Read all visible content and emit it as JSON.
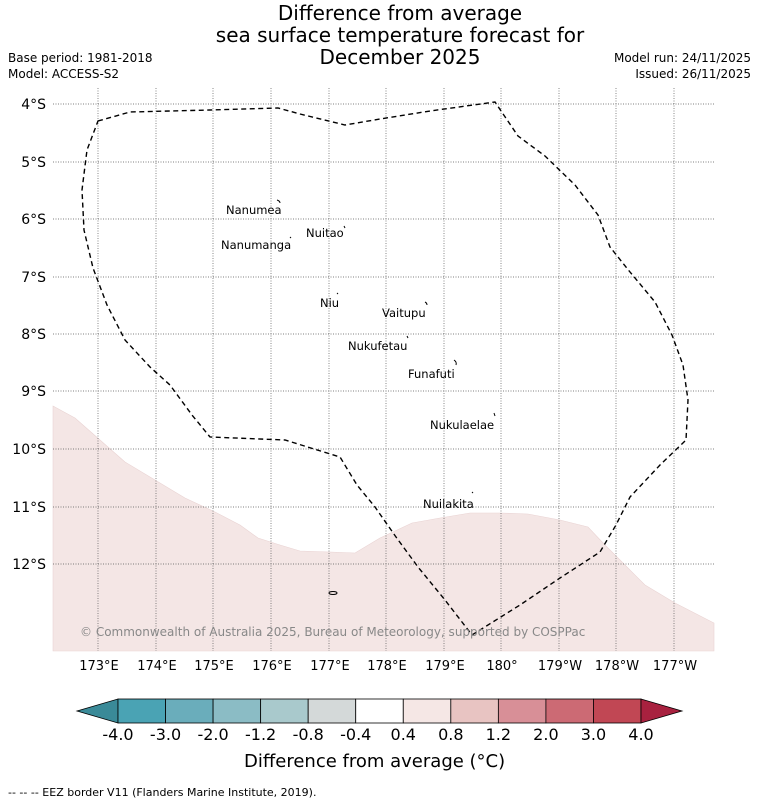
{
  "title": {
    "line1": "Difference from average",
    "line2": "sea surface temperature forecast for",
    "line3": "December 2025"
  },
  "meta": {
    "base_period": "Base period: 1981-2018",
    "model": "Model: ACCESS-S2",
    "model_run": "Model run: 24/11/2025",
    "issued": "Issued: 26/11/2025"
  },
  "axes": {
    "lat_labels": [
      "4°S",
      "5°S",
      "6°S",
      "7°S",
      "8°S",
      "9°S",
      "10°S",
      "11°S",
      "12°S"
    ],
    "lon_labels": [
      "173°E",
      "174°E",
      "175°E",
      "176°E",
      "177°E",
      "178°E",
      "179°E",
      "180°",
      "179°W",
      "178°W",
      "177°W"
    ]
  },
  "islands": [
    {
      "name": "Nanumea"
    },
    {
      "name": "Nuitao"
    },
    {
      "name": "Nanumanga"
    },
    {
      "name": "Niu"
    },
    {
      "name": "Vaitupu"
    },
    {
      "name": "Nukufetau"
    },
    {
      "name": "Funafuti"
    },
    {
      "name": "Nukulaelae"
    },
    {
      "name": "Nuilakita"
    }
  ],
  "copyright": "© Commonwealth of Australia 2025, Bureau of Meteorology, supported by COSPPac",
  "colorbar": {
    "title": "Difference from average (°C)",
    "ticks": [
      "-4.0",
      "-3.0",
      "-2.0",
      "-1.2",
      "-0.8",
      "-0.4",
      "0.4",
      "0.8",
      "1.2",
      "2.0",
      "3.0",
      "4.0"
    ],
    "colors": [
      "#4aa3b4",
      "#6aadbb",
      "#8bbcc5",
      "#a9c9cc",
      "#d4d9d9",
      "#ffffff",
      "#f5e7e5",
      "#e8c4c2",
      "#d88f97",
      "#cc6a74",
      "#c14754"
    ],
    "under_color": "#3a8a98",
    "over_color": "#a8213f"
  },
  "anomaly_shading": {
    "color": "#f4e6e5",
    "range": "0.4 to 0.8"
  },
  "footer": "--  --  -- EEZ border V11 (Flanders Marine Institute, 2019)."
}
